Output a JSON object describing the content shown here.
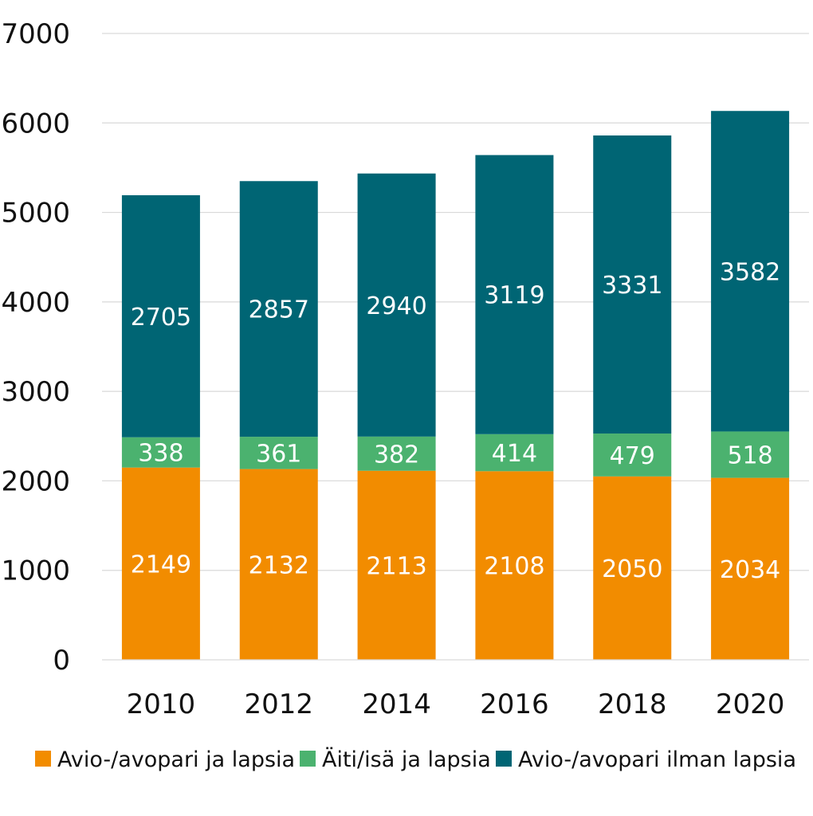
{
  "chart_data": {
    "type": "bar",
    "stacked": true,
    "title": "",
    "xlabel": "",
    "ylabel": "",
    "categories": [
      "2010",
      "2012",
      "2014",
      "2016",
      "2018",
      "2020"
    ],
    "ylim": [
      0,
      7000
    ],
    "yticks": [
      "0",
      "1000",
      "2000",
      "3000",
      "4000",
      "5000",
      "6000",
      "7000"
    ],
    "grid": true,
    "legend_position": "bottom",
    "series": [
      {
        "name": "Avio-/avopari ja lapsia",
        "color": "#f28c00",
        "values": [
          2149,
          2132,
          2113,
          2108,
          2050,
          2034
        ]
      },
      {
        "name": "Äiti/isä ja lapsia",
        "color": "#4bb26f",
        "values": [
          338,
          361,
          382,
          414,
          479,
          518
        ]
      },
      {
        "name": "Avio-/avopari ilman lapsia",
        "color": "#006574",
        "values": [
          2705,
          2857,
          2940,
          3119,
          3331,
          3582
        ]
      }
    ]
  }
}
